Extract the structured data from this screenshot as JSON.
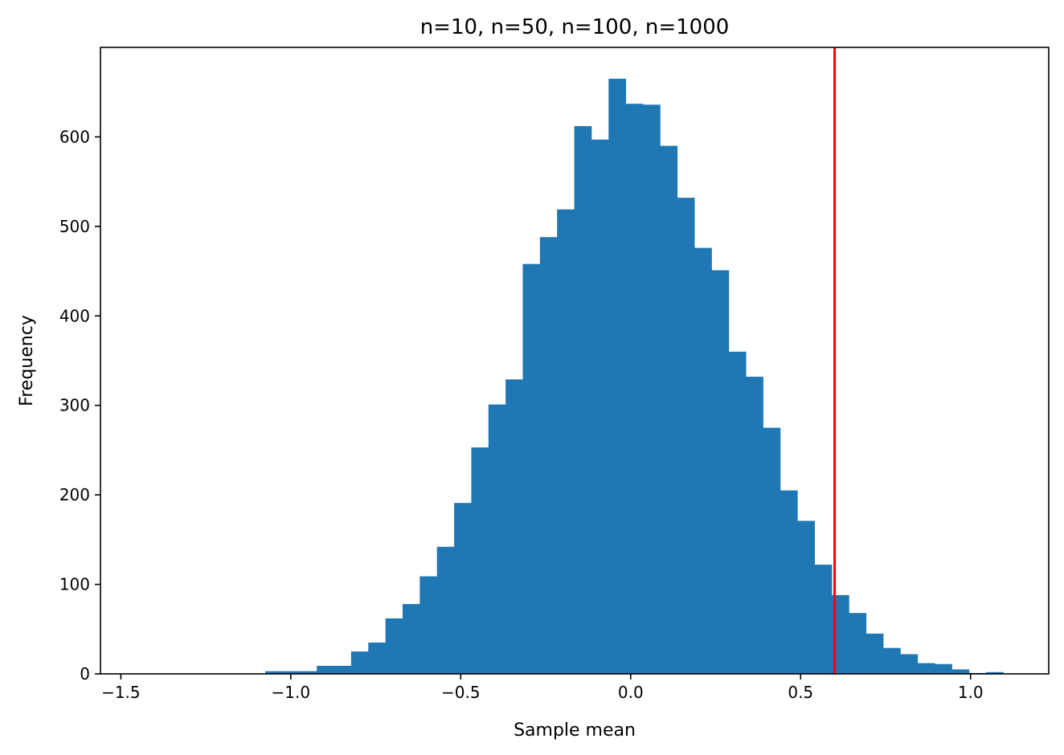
{
  "chart_data": {
    "type": "bar",
    "title": "n=10, n=50, n=100, n=1000",
    "xlabel": "Sample mean",
    "ylabel": "Frequency",
    "xlim": [
      -1.56,
      1.23
    ],
    "ylim": [
      0,
      700
    ],
    "x_ticks": [
      -1.5,
      -1.0,
      -0.5,
      0.0,
      0.5,
      1.0
    ],
    "x_tick_labels": [
      "−1.5",
      "−1.0",
      "−0.5",
      "0.0",
      "0.5",
      "1.0"
    ],
    "y_ticks": [
      0,
      100,
      200,
      300,
      400,
      500,
      600
    ],
    "y_tick_labels": [
      "0",
      "100",
      "200",
      "300",
      "400",
      "500",
      "600"
    ],
    "grid": false,
    "bin_start": -1.075,
    "bin_width": 0.0505,
    "values": [
      3,
      3,
      3,
      9,
      9,
      25,
      35,
      62,
      78,
      109,
      142,
      191,
      253,
      301,
      329,
      458,
      488,
      519,
      612,
      597,
      665,
      637,
      636,
      590,
      532,
      476,
      451,
      360,
      332,
      275,
      205,
      171,
      122,
      88,
      68,
      45,
      29,
      22,
      12,
      11,
      5,
      1,
      2
    ],
    "bar_color": "#1f77b4",
    "reference_line": {
      "x": 0.6,
      "color": "#ff0000"
    }
  }
}
